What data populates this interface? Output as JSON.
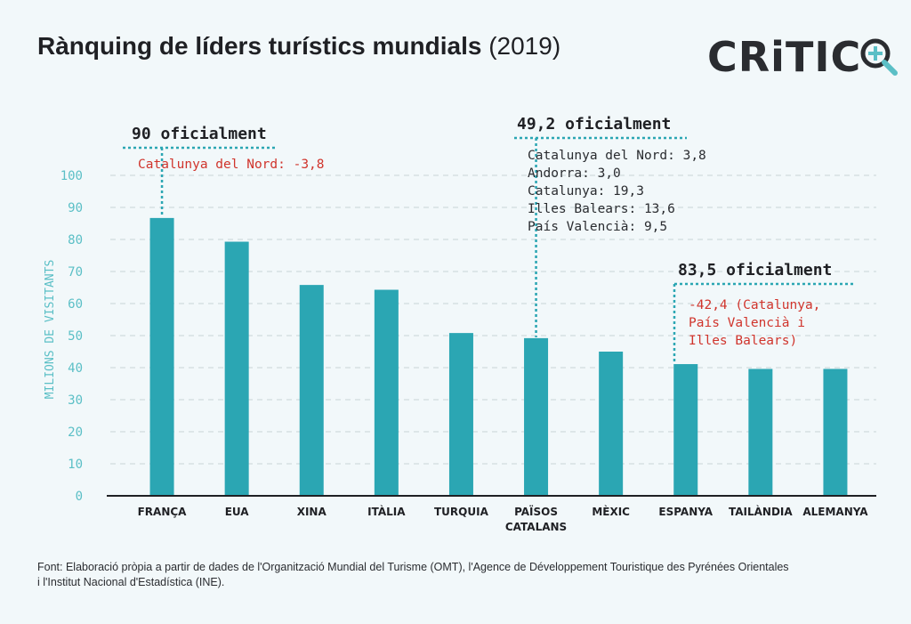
{
  "title": "Rànquing de líders turístics mundials",
  "title_year": "(2019)",
  "logo_text": "CRiTIC",
  "footer": {
    "line1": "Font: Elaboració pròpia a partir de dades de l'Organització Mundial del Turisme (OMT), l'Agence de Développement Touristique des Pyrénées Orientales",
    "line2": "i l'Institut Nacional d'Estadística (INE)."
  },
  "colors": {
    "bar": "#2ba6b3",
    "axis_text": "#5bbfc6",
    "annotation_red": "#d0342c",
    "annotation_dark": "#2a2c30",
    "background": "#f2f8fa"
  },
  "chart_data": {
    "type": "bar",
    "categories": [
      "FRANÇA",
      "EUA",
      "XINA",
      "ITÀLIA",
      "TURQUIA",
      "PAÏSOS CATALANS",
      "MÈXIC",
      "ESPANYA",
      "TAILÀNDIA",
      "ALEMANYA"
    ],
    "category_lines": [
      [
        "FRANÇA"
      ],
      [
        "EUA"
      ],
      [
        "XINA"
      ],
      [
        "ITÀLIA"
      ],
      [
        "TURQUIA"
      ],
      [
        "PAÏSOS",
        "CATALANS"
      ],
      [
        "MÈXIC"
      ],
      [
        "ESPANYA"
      ],
      [
        "TAILÀNDIA"
      ],
      [
        "ALEMANYA"
      ]
    ],
    "values": [
      86.7,
      79.3,
      65.8,
      64.3,
      50.8,
      49.2,
      45.0,
      41.1,
      39.6,
      39.6
    ],
    "ylabel": "MILIONS DE VISITANTS",
    "ylim": [
      0,
      100
    ],
    "yticks": [
      0,
      10,
      20,
      30,
      40,
      50,
      60,
      70,
      80,
      90,
      100
    ],
    "grid": true,
    "annotations": [
      {
        "category": "FRANÇA",
        "heading": "90 oficialment",
        "color": "red",
        "lines": [
          "Catalunya del Nord: -3,8"
        ]
      },
      {
        "category": "PAÏSOS CATALANS",
        "heading": "49,2  oficialment",
        "color": "dark",
        "lines": [
          "Catalunya del Nord: 3,8",
          "Andorra: 3,0",
          "Catalunya: 19,3",
          "Illes Balears: 13,6",
          "País Valencià: 9,5"
        ]
      },
      {
        "category": "ESPANYA",
        "heading": "83,5  oficialment",
        "color": "red",
        "lines": [
          "-42,4 (Catalunya,",
          "País Valencià i",
          "Illes Balears)"
        ]
      }
    ]
  }
}
